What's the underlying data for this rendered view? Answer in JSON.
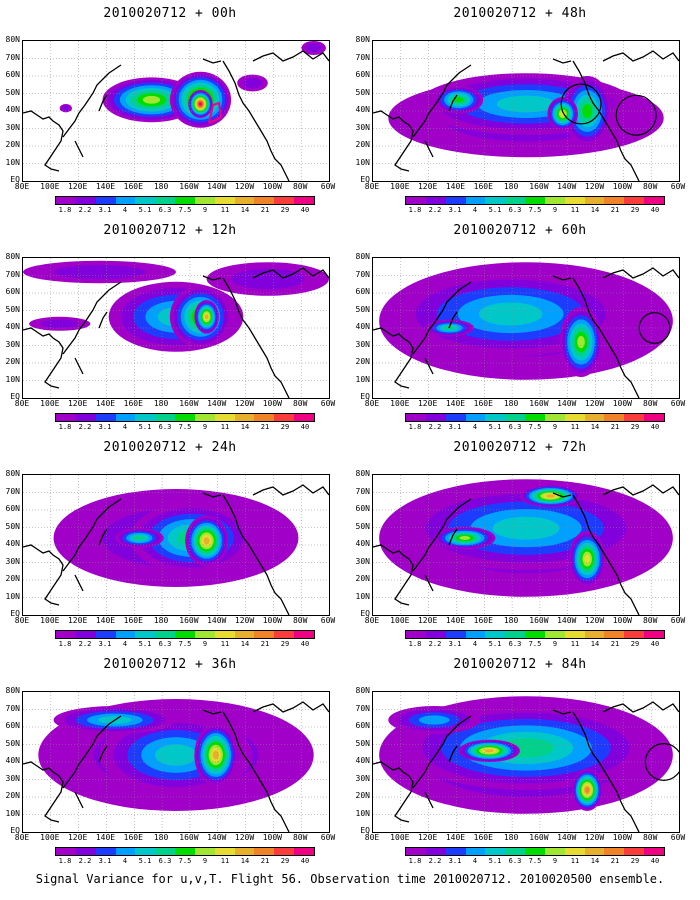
{
  "panels": [
    {
      "title": "2010020712 + 00h",
      "lead": 0
    },
    {
      "title": "2010020712 + 48h",
      "lead": 48
    },
    {
      "title": "2010020712 + 12h",
      "lead": 12
    },
    {
      "title": "2010020712 + 60h",
      "lead": 60
    },
    {
      "title": "2010020712 + 24h",
      "lead": 24
    },
    {
      "title": "2010020712 + 72h",
      "lead": 72
    },
    {
      "title": "2010020712 + 36h",
      "lead": 36
    },
    {
      "title": "2010020712 + 84h",
      "lead": 84
    }
  ],
  "x_ticks": [
    "80E",
    "100E",
    "120E",
    "140E",
    "160E",
    "180",
    "160W",
    "140W",
    "120W",
    "100W",
    "80W",
    "60W"
  ],
  "y_ticks": [
    "80N",
    "70N",
    "60N",
    "50N",
    "40N",
    "30N",
    "20N",
    "10N",
    "EQ"
  ],
  "colorbar": {
    "levels": [
      "1.8",
      "2.2",
      "3.1",
      "4",
      "5.1",
      "6.3",
      "7.5",
      "9",
      "11",
      "14",
      "21",
      "29",
      "40"
    ],
    "colors": [
      "#a000c8",
      "#8200dc",
      "#1e3cff",
      "#00a0ff",
      "#00c8c8",
      "#00d28c",
      "#00dc00",
      "#a0e632",
      "#e6dc32",
      "#e6af2d",
      "#f08228",
      "#fa3c3c",
      "#f00082"
    ]
  },
  "caption": "Signal Variance for u,v,T. Flight 56. Observation time 2010020712. 2010020500 ensemble."
}
